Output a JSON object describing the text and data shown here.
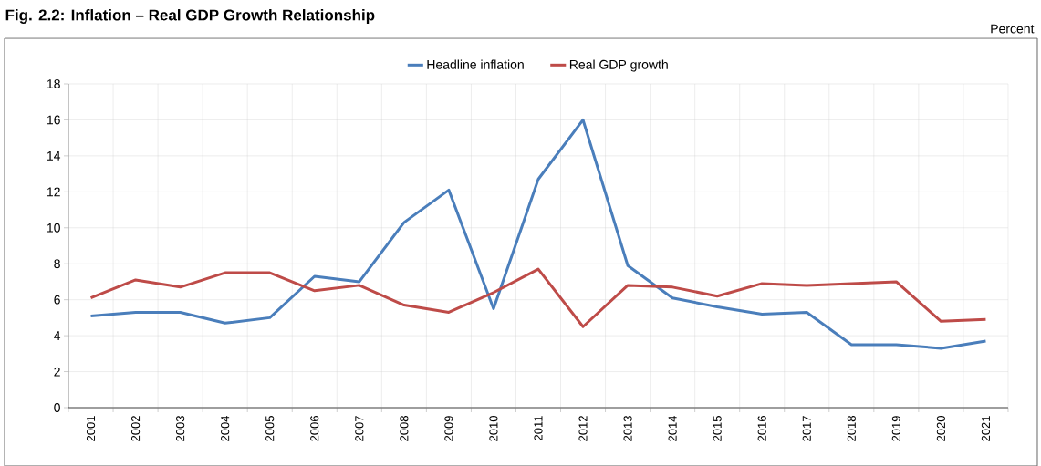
{
  "chart_data": {
    "type": "line",
    "title": "Fig. 2.2: Inflation – Real GDP Growth Relationship",
    "annotations": [
      "Percent"
    ],
    "categories": [
      "2001",
      "2002",
      "2003",
      "2004",
      "2005",
      "2006",
      "2007",
      "2008",
      "2009",
      "2010",
      "2011",
      "2012",
      "2013",
      "2014",
      "2015",
      "2016",
      "2017",
      "2018",
      "2019",
      "2020",
      "2021"
    ],
    "series": [
      {
        "name": "Headline inflation",
        "color": "#4a7ebb",
        "values": [
          5.1,
          5.3,
          5.3,
          4.7,
          5.0,
          7.3,
          7.0,
          10.3,
          12.1,
          5.5,
          12.7,
          16.0,
          7.9,
          6.1,
          5.6,
          5.2,
          5.3,
          3.5,
          3.5,
          3.3,
          3.7
        ]
      },
      {
        "name": "Real GDP growth",
        "color": "#be4b48",
        "values": [
          6.1,
          7.1,
          6.7,
          7.5,
          7.5,
          6.5,
          6.8,
          5.7,
          5.3,
          6.4,
          7.7,
          4.5,
          6.8,
          6.7,
          6.2,
          6.9,
          6.8,
          6.9,
          7.0,
          4.8,
          4.9
        ]
      }
    ],
    "ylim": [
      0,
      18
    ],
    "yticks": [
      0,
      2,
      4,
      6,
      8,
      10,
      12,
      14,
      16,
      18
    ],
    "grid": true,
    "legend": "top",
    "marker": "none",
    "line_style": "solid"
  }
}
